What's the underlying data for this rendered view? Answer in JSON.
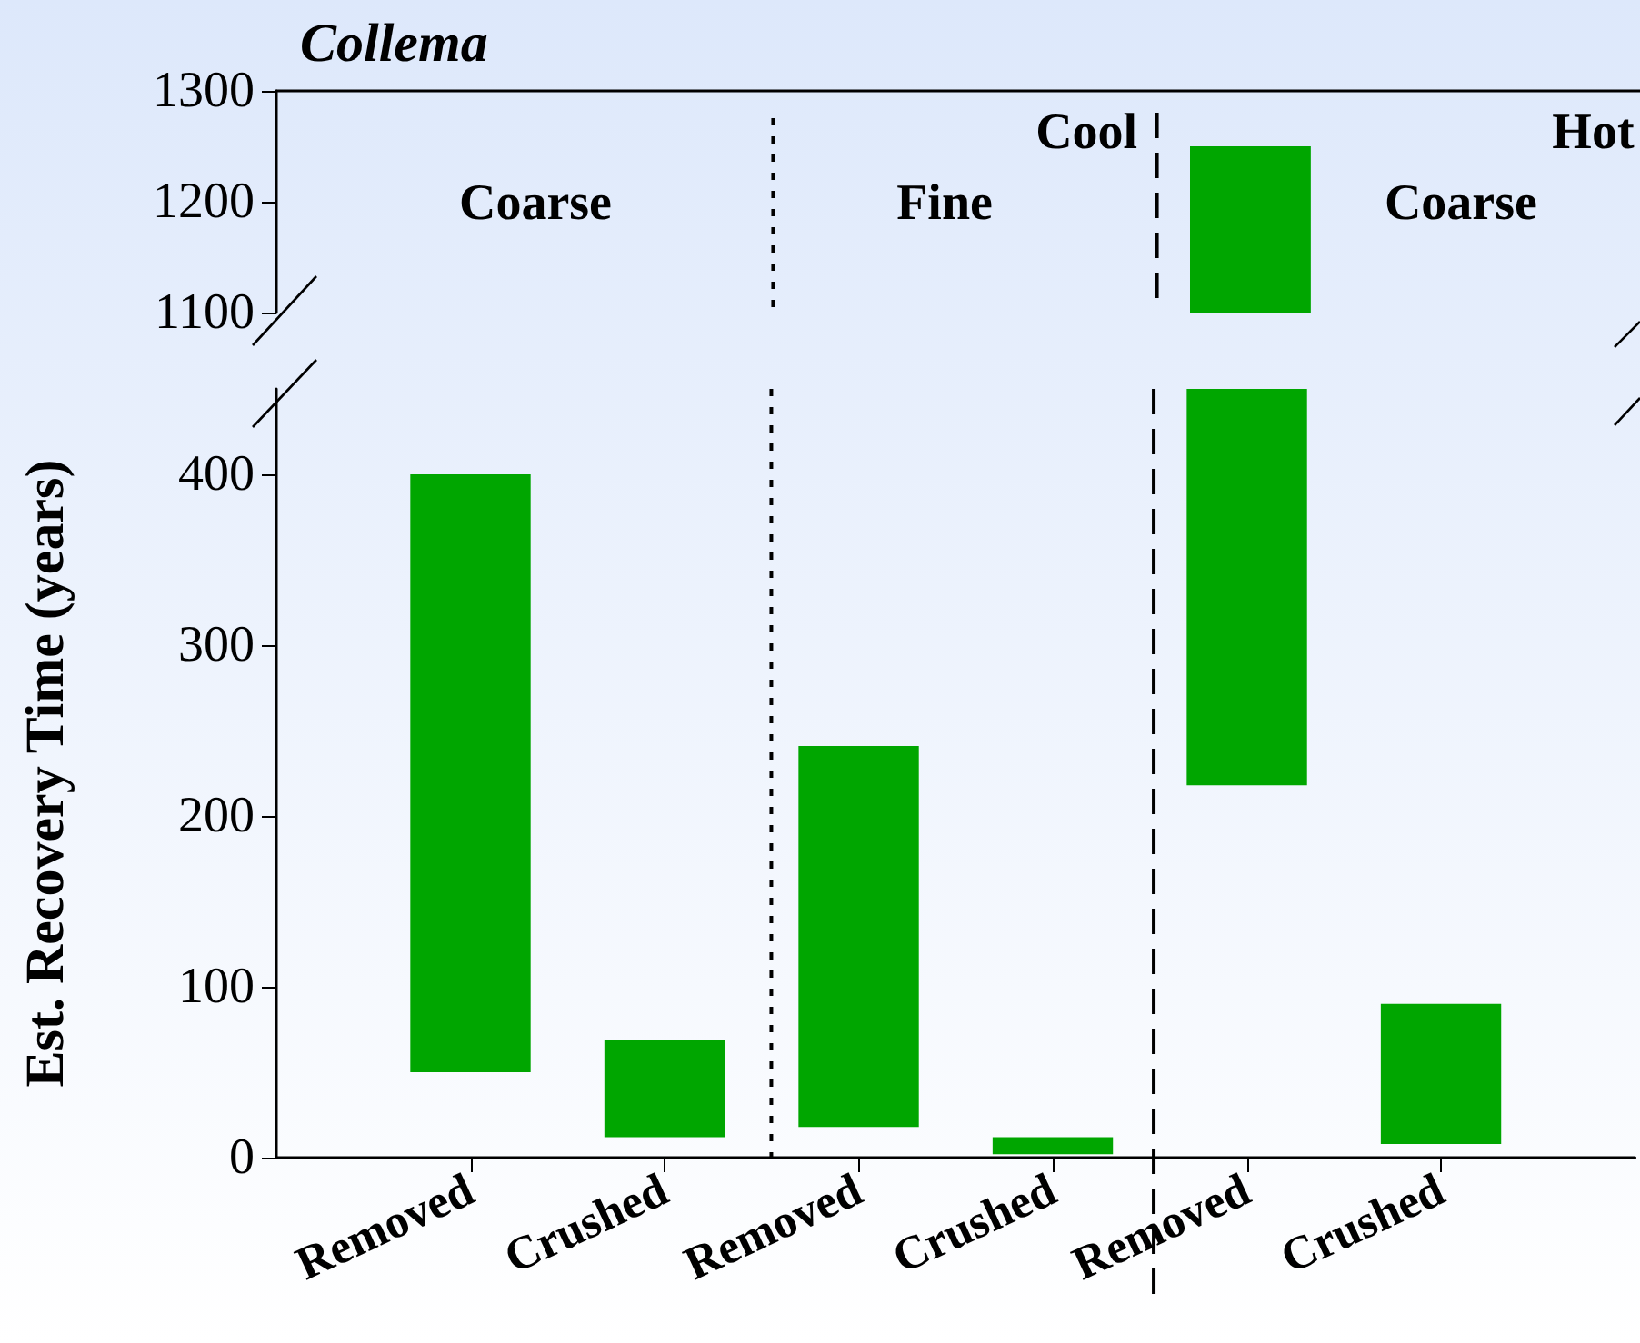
{
  "chart_data": [
    {
      "type": "bar",
      "title": "Collema",
      "categories": [
        null,
        null,
        null,
        null,
        null,
        null
      ],
      "ylim": [
        1100,
        1300
      ],
      "yticks": [
        1100,
        1200,
        1300
      ],
      "tick_labels": "y",
      "base": [
        null,
        null,
        null,
        null,
        1100,
        null
      ],
      "values": [
        null,
        null,
        null,
        null,
        150,
        null
      ],
      "color": "#00a600",
      "annotations": [
        "Cool",
        "Hot",
        "Coarse",
        "Fine",
        "Coarse"
      ]
    },
    {
      "type": "bar",
      "ylabel": "Est. Recovery Time (years)",
      "categories": [
        "Removed",
        "Crushed",
        "Removed",
        "Crushed",
        "Removed",
        "Crushed"
      ],
      "ylim": [
        0,
        450
      ],
      "yticks": [
        0,
        100,
        200,
        300,
        400
      ],
      "base": [
        50,
        12,
        18,
        2,
        218,
        8
      ],
      "values": [
        350,
        57,
        223,
        10,
        232,
        82
      ],
      "color": "#00a600"
    }
  ]
}
